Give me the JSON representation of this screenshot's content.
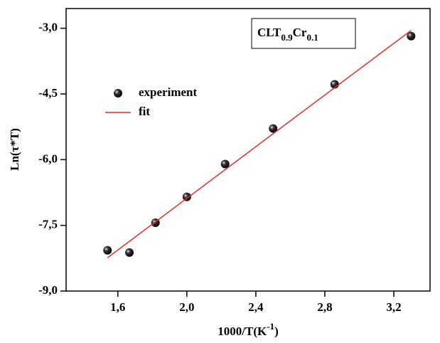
{
  "chart_data": {
    "type": "scatter",
    "xlabel": [
      "1000/T(K",
      "-1",
      ")"
    ],
    "ylabel": "Ln(τ*T)",
    "annotation": [
      "CLT",
      "0.9",
      "Cr",
      "0.1"
    ],
    "xlim": [
      1.3,
      3.41
    ],
    "ylim": [
      -9.0,
      -2.55
    ],
    "xticks": [
      {
        "value": 1.6,
        "label": "1,6"
      },
      {
        "value": 2.0,
        "label": "2,0"
      },
      {
        "value": 2.4,
        "label": "2,4"
      },
      {
        "value": 2.8,
        "label": "2,8"
      },
      {
        "value": 3.2,
        "label": "3,2"
      }
    ],
    "yticks": [
      {
        "value": -9.0,
        "label": "-9,0"
      },
      {
        "value": -7.5,
        "label": "-7,5"
      },
      {
        "value": -6.0,
        "label": "-6,0"
      },
      {
        "value": -4.5,
        "label": "-4,5"
      },
      {
        "value": -3.0,
        "label": "-3,0"
      }
    ],
    "legend": "upper left",
    "series": [
      {
        "name": "experiment",
        "color": "#000000",
        "mark": "marker",
        "x": [
          1.54,
          1.667,
          1.818,
          2.0,
          2.222,
          2.5,
          2.857,
          3.3
        ],
        "values": [
          -8.07,
          -8.12,
          -7.44,
          -6.85,
          -6.1,
          -5.29,
          -4.28,
          -3.18
        ]
      },
      {
        "name": "fit",
        "color": "#e0302a",
        "mark": "line",
        "x": [
          1.54,
          3.3
        ],
        "values": [
          -8.24,
          -3.05
        ]
      }
    ]
  }
}
